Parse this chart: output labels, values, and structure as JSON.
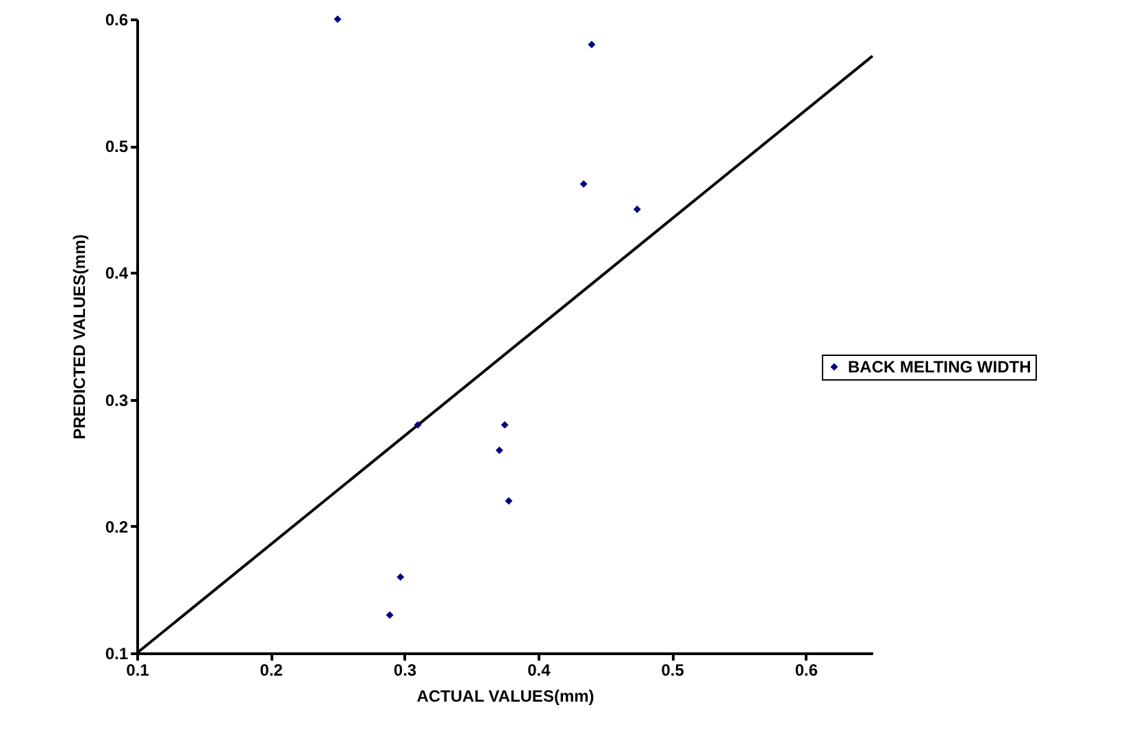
{
  "chart_data": {
    "type": "scatter",
    "xlabel": "ACTUAL VALUES(mm)",
    "ylabel": "PREDICTED VALUES(mm)",
    "xlim": [
      0.1,
      0.65
    ],
    "xticks": [
      0.1,
      0.2,
      0.3,
      0.4,
      0.5,
      0.6
    ],
    "ylim": [
      0.1,
      0.6
    ],
    "yticks": [
      0.1,
      0.2,
      0.3,
      0.4,
      0.5,
      0.6
    ],
    "grid": false,
    "legend": "right",
    "series": [
      {
        "name": "BACK MELTING WIDTH",
        "color": "#000080",
        "marker": "diamond",
        "x": [
          0.25,
          0.44,
          0.434,
          0.474,
          0.31,
          0.375,
          0.371,
          0.378,
          0.297,
          0.289
        ],
        "values": [
          0.6,
          0.58,
          0.47,
          0.45,
          0.28,
          0.28,
          0.26,
          0.22,
          0.16,
          0.13
        ]
      },
      {
        "type": "line",
        "color": "#000000",
        "marker": "none",
        "x": [
          0.1,
          0.65
        ],
        "values": [
          0.1,
          0.571
        ]
      }
    ]
  }
}
